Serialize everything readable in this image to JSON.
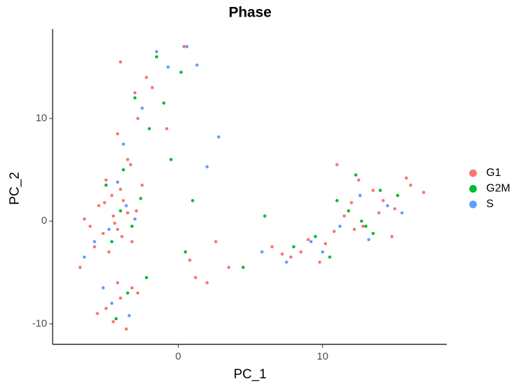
{
  "chart_data": {
    "type": "scatter",
    "title": "Phase",
    "x_label": "PC_1",
    "y_label": "PC_2",
    "xlim": [
      -8.7,
      18.6
    ],
    "ylim": [
      -12,
      18.7
    ],
    "xticks": [
      0,
      10
    ],
    "yticks": [
      -10,
      0,
      10
    ],
    "grid": false,
    "legend": "right",
    "series": [
      {
        "name": "G1",
        "color": "#F8766D",
        "x": [
          -4.5,
          -5.2,
          -3.8,
          -6.1,
          -4.0,
          -5.5,
          -3.2,
          -4.8,
          -6.5,
          -2.9,
          -5.0,
          -4.2,
          -3.5,
          -5.8,
          -4.6,
          -3.9,
          -6.8,
          -2.5,
          -4.4,
          -5.1,
          -3.5,
          -4.2,
          -2.8,
          -3.0,
          -2.2,
          -4.0,
          -1.8,
          -3.3,
          -0.8,
          0.4,
          -4.0,
          -5.0,
          -3.2,
          -4.5,
          -3.6,
          -5.6,
          -2.8,
          -4.2,
          1.2,
          2.0,
          3.5,
          0.8,
          2.6,
          6.5,
          7.8,
          9.0,
          10.2,
          11.5,
          12.0,
          12.8,
          13.5,
          14.2,
          15.0,
          16.1,
          8.5,
          10.8,
          12.5,
          13.9,
          11.0,
          14.8,
          9.8,
          7.2,
          12.2,
          15.8,
          17.0
        ],
        "values": [
          0.5,
          -1.2,
          2.0,
          -0.5,
          3.1,
          1.5,
          -2.0,
          -3.0,
          0.2,
          1.0,
          4.0,
          -0.8,
          0.8,
          -2.5,
          2.5,
          -1.5,
          -4.5,
          3.5,
          -0.2,
          1.8,
          6.0,
          8.5,
          10.0,
          12.5,
          14.0,
          15.5,
          13.0,
          5.5,
          9.0,
          17.0,
          -7.5,
          -8.5,
          -6.5,
          -9.8,
          -10.5,
          -9.0,
          -7.0,
          -6.0,
          -5.5,
          -6.0,
          -4.5,
          -3.8,
          -2.0,
          -2.5,
          -3.5,
          -1.8,
          -2.2,
          0.5,
          1.8,
          -0.5,
          3.0,
          2.0,
          1.2,
          3.5,
          -3.0,
          -1.0,
          4.0,
          0.8,
          5.5,
          -1.5,
          -4.0,
          -3.2,
          -0.8,
          4.2,
          2.8
        ]
      },
      {
        "name": "G2M",
        "color": "#00BA38",
        "x": [
          -4.0,
          -3.2,
          -5.0,
          -2.6,
          -3.8,
          -4.6,
          -2.0,
          -3.0,
          -1.5,
          -1.0,
          0.2,
          -0.5,
          1.0,
          0.5,
          -3.5,
          -2.2,
          -4.3,
          4.5,
          6.0,
          8.0,
          9.5,
          11.0,
          12.3,
          13.0,
          14.0,
          11.8,
          13.5,
          15.2,
          10.5,
          12.7
        ],
        "values": [
          1.0,
          -0.5,
          3.5,
          2.2,
          5.0,
          -2.0,
          9.0,
          12.0,
          16.0,
          11.5,
          14.5,
          6.0,
          2.0,
          -3.0,
          -7.0,
          -5.5,
          -9.5,
          -4.5,
          0.5,
          -2.5,
          -1.5,
          2.0,
          4.5,
          -0.5,
          3.0,
          1.0,
          -1.2,
          2.5,
          -3.5,
          0.0
        ]
      },
      {
        "name": "S",
        "color": "#619CFF",
        "x": [
          -4.8,
          -3.6,
          -5.8,
          -4.2,
          -6.5,
          -3.0,
          -2.5,
          -3.8,
          -1.5,
          -0.7,
          0.6,
          1.3,
          2.8,
          2.0,
          -4.6,
          -3.4,
          -5.2,
          5.8,
          7.5,
          9.2,
          11.2,
          12.6,
          14.5,
          13.2,
          10.0,
          15.5
        ],
        "values": [
          -0.8,
          1.5,
          -2.0,
          3.8,
          -3.5,
          0.2,
          11.0,
          7.5,
          16.5,
          15.0,
          17.0,
          15.2,
          8.2,
          5.3,
          -8.0,
          -9.2,
          -6.5,
          -3.0,
          -4.0,
          -2.0,
          -0.5,
          2.5,
          1.5,
          -1.8,
          -3.0,
          0.8
        ]
      }
    ]
  }
}
